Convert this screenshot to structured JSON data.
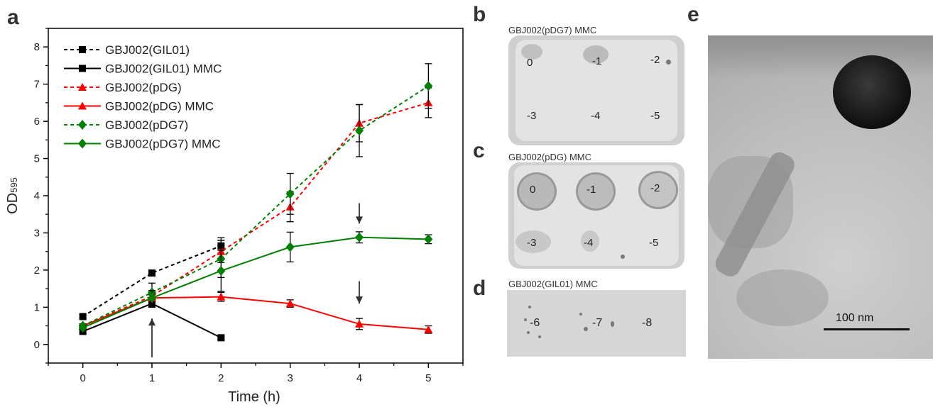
{
  "panels": {
    "a": "a",
    "b": "b",
    "c": "c",
    "d": "d",
    "e": "e"
  },
  "chart_data": {
    "type": "line",
    "xlabel": "Time (h)",
    "ylabel_main": "OD",
    "ylabel_sub": "595",
    "xlim": [
      -0.5,
      5.5
    ],
    "ylim": [
      -0.5,
      8.5
    ],
    "xticks": [
      0,
      1,
      2,
      3,
      4,
      5
    ],
    "yticks": [
      0,
      1,
      2,
      3,
      4,
      5,
      6,
      7,
      8
    ],
    "legend_position": "top-left",
    "series": [
      {
        "name": "GBJ002(GIL01)",
        "color": "#000000",
        "dashed": true,
        "marker": "square",
        "x": [
          0,
          1,
          2
        ],
        "y": [
          0.75,
          1.92,
          2.65
        ],
        "err": [
          0.05,
          0.06,
          0.22
        ]
      },
      {
        "name": "GBJ002(GIL01) MMC",
        "color": "#000000",
        "dashed": false,
        "marker": "square",
        "x": [
          0,
          1,
          2
        ],
        "y": [
          0.35,
          1.1,
          0.18
        ],
        "err": [
          0.04,
          0.1,
          0.03
        ]
      },
      {
        "name": "GBJ002(pDG)",
        "color": "#ff0000",
        "dashed": true,
        "marker": "triangle",
        "x": [
          0,
          1,
          2,
          3,
          4,
          5
        ],
        "y": [
          0.5,
          1.3,
          2.5,
          3.7,
          5.95,
          6.5
        ],
        "err": [
          0.05,
          0.1,
          0.3,
          0.4,
          0.5,
          0.4
        ]
      },
      {
        "name": "GBJ002(pDG) MMC",
        "color": "#ff0000",
        "dashed": false,
        "marker": "triangle",
        "x": [
          0,
          1,
          2,
          3,
          4,
          5
        ],
        "y": [
          0.5,
          1.25,
          1.28,
          1.1,
          0.55,
          0.4
        ],
        "err": [
          0.05,
          0.08,
          0.12,
          0.1,
          0.15,
          0.1
        ]
      },
      {
        "name": "GBJ002(pDG7)",
        "color": "#008000",
        "dashed": true,
        "marker": "diamond",
        "x": [
          0,
          1,
          2,
          3,
          4,
          5
        ],
        "y": [
          0.5,
          1.4,
          2.3,
          4.05,
          5.75,
          6.95
        ],
        "err": [
          0.05,
          0.25,
          0.5,
          0.55,
          0.7,
          0.6
        ]
      },
      {
        "name": "GBJ002(pDG7) MMC",
        "color": "#008000",
        "dashed": false,
        "marker": "diamond",
        "x": [
          0,
          1,
          2,
          3,
          4,
          5
        ],
        "y": [
          0.45,
          1.25,
          1.98,
          2.62,
          2.88,
          2.83
        ],
        "err": [
          0.05,
          0.2,
          0.55,
          0.4,
          0.15,
          0.12
        ]
      }
    ],
    "arrows": [
      {
        "x": 1,
        "direction": "up",
        "from": -0.35,
        "to": 0.7
      },
      {
        "x": 4,
        "direction": "down",
        "from": 3.8,
        "to": 3.25
      },
      {
        "x": 4,
        "direction": "down",
        "from": 1.7,
        "to": 1.1
      }
    ]
  },
  "plates": {
    "b": {
      "title": "GBJ002(pDG7) MMC",
      "labels": [
        "0",
        "-1",
        "-2",
        "-3",
        "-4",
        "-5"
      ]
    },
    "c": {
      "title": "GBJ002(pDG) MMC",
      "labels": [
        "0",
        "-1",
        "-2",
        "-3",
        "-4",
        "-5"
      ]
    },
    "d": {
      "title": "GBJ002(GIL01) MMC",
      "labels": [
        "-6",
        "-7",
        "-8"
      ]
    }
  },
  "tem": {
    "scale_label": "100 nm"
  }
}
